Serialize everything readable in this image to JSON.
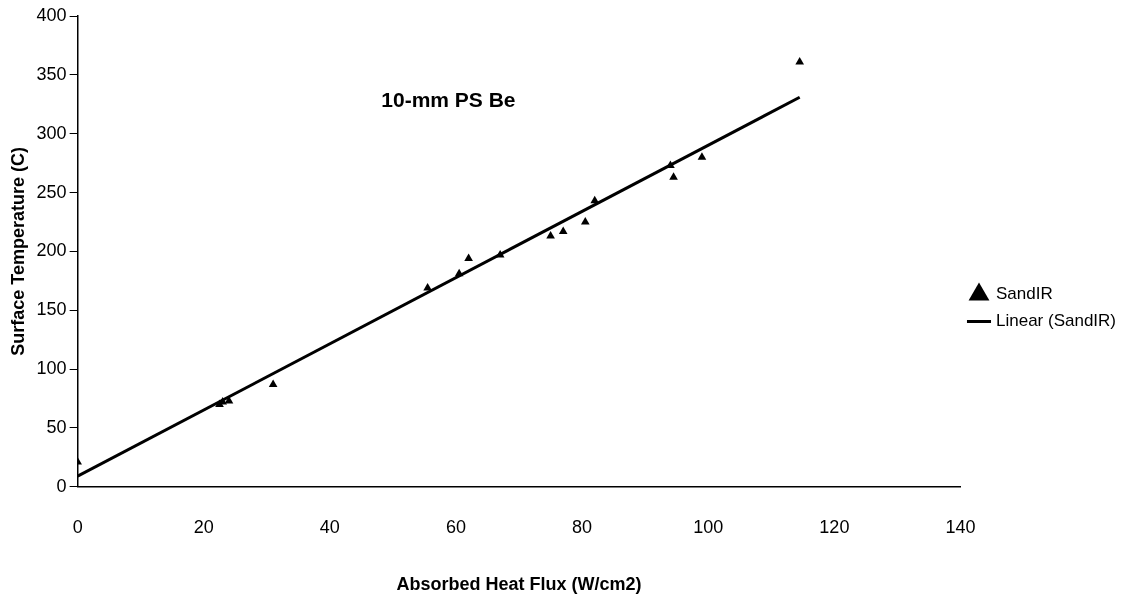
{
  "chart_data": {
    "type": "scatter",
    "xlabel": "Absorbed Heat Flux (W/cm2)",
    "ylabel": "Surface Temperature (C)",
    "annotations": [
      "10-mm PS Be"
    ],
    "series": [
      {
        "name": "SandIR",
        "color": "#000000",
        "marker": "triangle",
        "x": [
          0,
          22.5,
          23,
          24,
          31,
          55.5,
          60.5,
          62,
          67,
          75,
          77,
          80.5,
          82,
          94,
          94.5,
          99,
          114.5
        ],
        "values": [
          21,
          70,
          72,
          73,
          87,
          169,
          181,
          194,
          197,
          213,
          217,
          225,
          243,
          273,
          263,
          280,
          361
        ]
      },
      {
        "name": "Linear (SandIR)",
        "type": "line",
        "color": "#000000",
        "marker": "none",
        "line_style": "solid",
        "x": [
          0,
          114.5
        ],
        "values": [
          9,
          331
        ]
      }
    ],
    "xlim": [
      0,
      140
    ],
    "xticks": [
      0,
      20,
      40,
      60,
      80,
      100,
      120,
      140
    ],
    "ylim": [
      0,
      400
    ],
    "yticks": [
      0,
      50,
      100,
      150,
      200,
      250,
      300,
      350,
      400
    ],
    "grid": false,
    "legend": "right"
  }
}
